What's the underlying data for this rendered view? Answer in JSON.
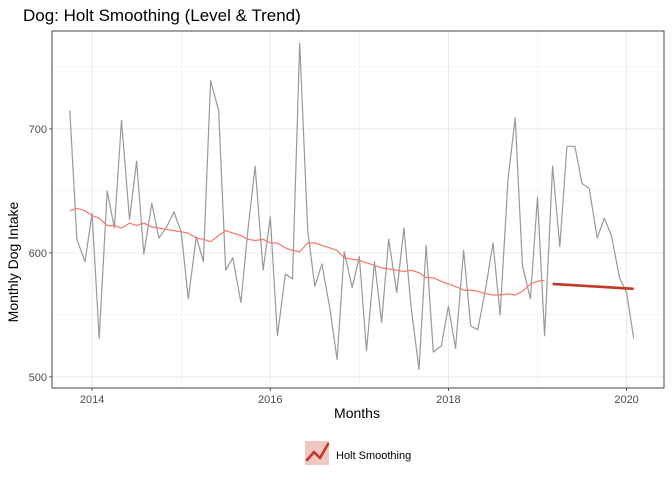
{
  "chart_data": {
    "type": "line",
    "title": "Dog: Holt Smoothing (Level & Trend)",
    "xlabel": "Months",
    "ylabel": "Monthly Dog Intake",
    "x_ticks": [
      2014,
      2016,
      2018,
      2020
    ],
    "y_ticks": [
      500,
      600,
      700
    ],
    "xlim": [
      2013.55,
      2020.42
    ],
    "ylim": [
      491,
      779
    ],
    "grid": true,
    "legend": {
      "position": "bottom",
      "entries": [
        "Holt Smoothing"
      ]
    },
    "colors": {
      "actual": "#999999",
      "fitted": "#F8766D",
      "forecast": "#C0392B",
      "panel_border": "#333333",
      "grid": "#ebebeb"
    },
    "series": [
      {
        "role": "actual",
        "x": [
          2013.75,
          2013.83,
          2013.92,
          2014.0,
          2014.08,
          2014.17,
          2014.25,
          2014.33,
          2014.42,
          2014.5,
          2014.58,
          2014.67,
          2014.75,
          2014.83,
          2014.92,
          2015.0,
          2015.08,
          2015.17,
          2015.25,
          2015.33,
          2015.42,
          2015.5,
          2015.58,
          2015.67,
          2015.75,
          2015.83,
          2015.92,
          2016.0,
          2016.08,
          2016.17,
          2016.25,
          2016.33,
          2016.42,
          2016.5,
          2016.58,
          2016.67,
          2016.75,
          2016.83,
          2016.92,
          2017.0,
          2017.08,
          2017.17,
          2017.25,
          2017.33,
          2017.42,
          2017.5,
          2017.58,
          2017.67,
          2017.75,
          2017.83,
          2017.92,
          2018.0,
          2018.08,
          2018.17,
          2018.25,
          2018.33,
          2018.42,
          2018.5,
          2018.58,
          2018.67,
          2018.75,
          2018.83,
          2018.92,
          2019.0,
          2019.08,
          2019.17,
          2019.25,
          2019.33,
          2019.42,
          2019.5,
          2019.58,
          2019.67,
          2019.75,
          2019.83,
          2019.92,
          2020.0,
          2020.08
        ],
        "values": [
          715,
          611,
          593,
          632,
          531,
          650,
          620,
          707,
          627,
          674,
          599,
          640,
          612,
          620,
          633,
          617,
          563,
          613,
          593,
          739,
          715,
          586,
          596,
          560,
          619,
          670,
          586,
          629,
          533,
          583,
          579,
          769,
          618,
          573,
          591,
          555,
          514,
          601,
          572,
          597,
          521,
          593,
          544,
          611,
          568,
          620,
          557,
          506,
          606,
          520,
          525,
          557,
          523,
          602,
          541,
          538,
          572,
          608,
          550,
          660,
          709,
          590,
          563,
          645,
          533,
          670,
          605,
          686,
          686,
          656,
          652,
          612,
          628,
          614,
          580,
          568,
          531
        ]
      },
      {
        "role": "fitted",
        "name": "Holt Smoothing",
        "x": [
          2013.75,
          2013.83,
          2013.92,
          2014.0,
          2014.08,
          2014.17,
          2014.25,
          2014.33,
          2014.42,
          2014.5,
          2014.58,
          2014.67,
          2014.75,
          2014.83,
          2014.92,
          2015.0,
          2015.08,
          2015.17,
          2015.25,
          2015.33,
          2015.42,
          2015.5,
          2015.58,
          2015.67,
          2015.75,
          2015.83,
          2015.92,
          2016.0,
          2016.08,
          2016.17,
          2016.25,
          2016.33,
          2016.42,
          2016.5,
          2016.58,
          2016.67,
          2016.75,
          2016.83,
          2016.92,
          2017.0,
          2017.08,
          2017.17,
          2017.25,
          2017.33,
          2017.42,
          2017.5,
          2017.58,
          2017.67,
          2017.75,
          2017.83,
          2017.92,
          2018.0,
          2018.08,
          2018.17,
          2018.25,
          2018.33,
          2018.42,
          2018.5,
          2018.58,
          2018.67,
          2018.75,
          2018.83,
          2018.92,
          2019.0,
          2019.08
        ],
        "values": [
          634,
          636,
          634,
          630,
          628,
          622,
          622,
          620,
          624,
          622,
          624,
          621,
          620,
          619,
          618,
          617,
          616,
          612,
          611,
          609,
          614,
          618,
          616,
          614,
          611,
          610,
          611,
          608,
          608,
          604,
          602,
          601,
          608,
          608,
          606,
          604,
          602,
          596,
          595,
          594,
          592,
          590,
          588,
          587,
          586,
          585,
          586,
          584,
          580,
          580,
          577,
          575,
          573,
          570,
          570,
          569,
          567,
          566,
          566,
          567,
          566,
          569,
          575,
          577,
          578
        ]
      },
      {
        "role": "forecast",
        "x": [
          2019.17,
          2020.08
        ],
        "values": [
          575,
          571
        ]
      }
    ]
  }
}
